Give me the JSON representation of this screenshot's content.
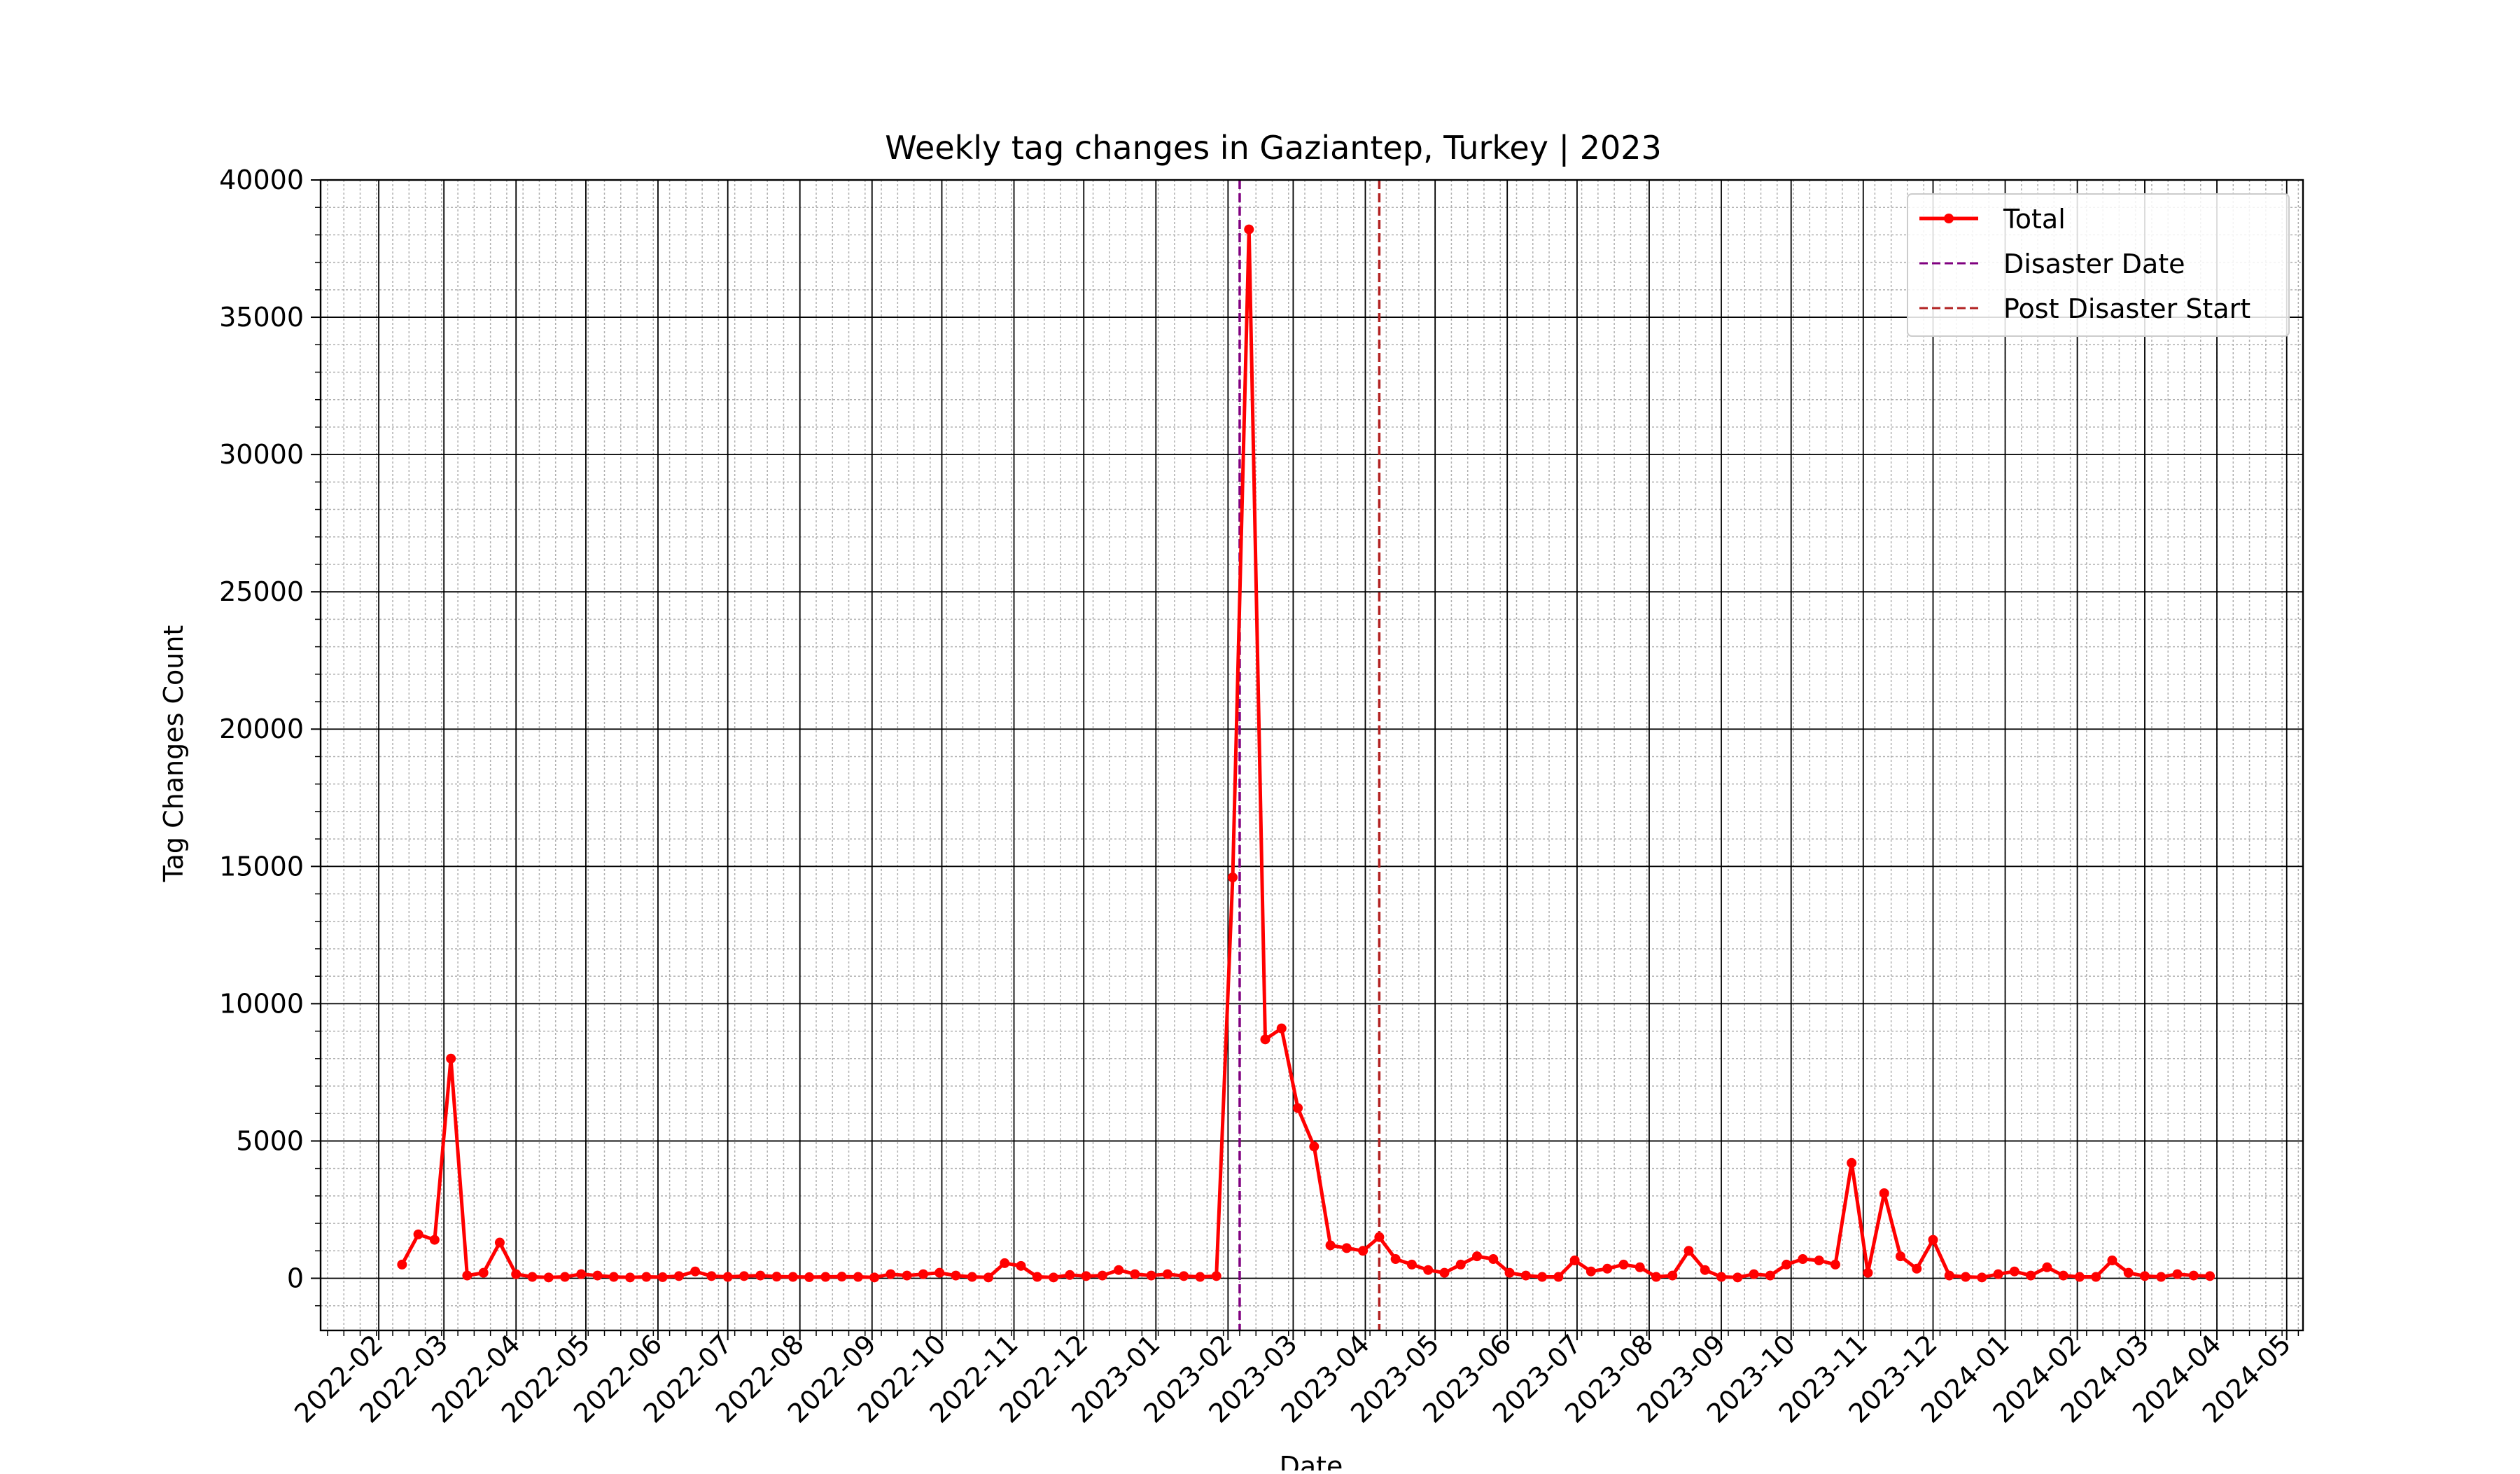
{
  "colors": {
    "total": "#ff0000",
    "disaster": "#800080",
    "post_disaster": "#b22222",
    "major_grid": "#000000",
    "minor_grid": "#b0b0b0"
  },
  "chart_data": {
    "type": "line",
    "title": "Weekly tag changes in Gaziantep, Turkey | 2023",
    "xlabel": "Date",
    "ylabel": "Tag Changes Count",
    "xlim": [
      "2022-01-07",
      "2024-05-08"
    ],
    "ylim": [
      -1900,
      40000
    ],
    "yticks": [
      0,
      5000,
      10000,
      15000,
      20000,
      25000,
      30000,
      35000,
      40000
    ],
    "xticks": [
      "2022-02",
      "2022-03",
      "2022-04",
      "2022-05",
      "2022-06",
      "2022-07",
      "2022-08",
      "2022-09",
      "2022-10",
      "2022-11",
      "2022-12",
      "2023-01",
      "2023-02",
      "2023-03",
      "2023-04",
      "2023-05",
      "2023-06",
      "2023-07",
      "2023-08",
      "2023-09",
      "2023-10",
      "2023-11",
      "2023-12",
      "2024-01",
      "2024-02",
      "2024-03",
      "2024-04",
      "2024-05"
    ],
    "grid": true,
    "legend": "top-right",
    "vlines": [
      {
        "name": "Disaster Date",
        "x": "2023-02-06",
        "color": "#800080"
      },
      {
        "name": "Post Disaster Start",
        "x": "2023-04-07",
        "color": "#b22222"
      }
    ],
    "series": [
      {
        "name": "Total",
        "color": "#ff0000",
        "x": [
          "2022-02-11",
          "2022-02-18",
          "2022-02-25",
          "2022-03-04",
          "2022-03-11",
          "2022-03-18",
          "2022-03-25",
          "2022-04-01",
          "2022-04-08",
          "2022-04-15",
          "2022-04-22",
          "2022-04-29",
          "2022-05-06",
          "2022-05-13",
          "2022-05-20",
          "2022-05-27",
          "2022-06-03",
          "2022-06-10",
          "2022-06-17",
          "2022-06-24",
          "2022-07-01",
          "2022-07-08",
          "2022-07-15",
          "2022-07-22",
          "2022-07-29",
          "2022-08-05",
          "2022-08-12",
          "2022-08-19",
          "2022-08-26",
          "2022-09-02",
          "2022-09-09",
          "2022-09-16",
          "2022-09-23",
          "2022-09-30",
          "2022-10-07",
          "2022-10-14",
          "2022-10-21",
          "2022-10-28",
          "2022-11-04",
          "2022-11-11",
          "2022-11-18",
          "2022-11-25",
          "2022-12-02",
          "2022-12-09",
          "2022-12-16",
          "2022-12-23",
          "2022-12-30",
          "2023-01-06",
          "2023-01-13",
          "2023-01-20",
          "2023-01-27",
          "2023-02-03",
          "2023-02-10",
          "2023-02-17",
          "2023-02-24",
          "2023-03-03",
          "2023-03-10",
          "2023-03-17",
          "2023-03-24",
          "2023-03-31",
          "2023-04-07",
          "2023-04-14",
          "2023-04-21",
          "2023-04-28",
          "2023-05-05",
          "2023-05-12",
          "2023-05-19",
          "2023-05-26",
          "2023-06-02",
          "2023-06-09",
          "2023-06-16",
          "2023-06-23",
          "2023-06-30",
          "2023-07-07",
          "2023-07-14",
          "2023-07-21",
          "2023-07-28",
          "2023-08-04",
          "2023-08-11",
          "2023-08-18",
          "2023-08-25",
          "2023-09-01",
          "2023-09-08",
          "2023-09-15",
          "2023-09-22",
          "2023-09-29",
          "2023-10-06",
          "2023-10-13",
          "2023-10-20",
          "2023-10-27",
          "2023-11-03",
          "2023-11-10",
          "2023-11-17",
          "2023-11-24",
          "2023-12-01",
          "2023-12-08",
          "2023-12-15",
          "2023-12-22",
          "2023-12-29",
          "2024-01-05",
          "2024-01-12",
          "2024-01-19",
          "2024-01-26",
          "2024-02-02",
          "2024-02-09",
          "2024-02-16",
          "2024-02-23",
          "2024-03-01",
          "2024-03-08",
          "2024-03-15",
          "2024-03-22",
          "2024-03-29"
        ],
        "y": [
          500,
          1600,
          1400,
          8000,
          100,
          200,
          1300,
          150,
          50,
          30,
          50,
          150,
          100,
          50,
          30,
          50,
          40,
          80,
          250,
          80,
          50,
          80,
          100,
          60,
          50,
          40,
          50,
          60,
          50,
          30,
          150,
          100,
          150,
          200,
          100,
          50,
          30,
          550,
          450,
          50,
          30,
          120,
          80,
          100,
          300,
          150,
          100,
          150,
          80,
          50,
          80,
          14600,
          38200,
          8700,
          9100,
          6200,
          4800,
          1200,
          1100,
          1000,
          1500,
          700,
          500,
          300,
          200,
          500,
          800,
          700,
          200,
          100,
          50,
          50,
          650,
          250,
          350,
          500,
          400,
          50,
          100,
          1000,
          300,
          50,
          30,
          150,
          100,
          500,
          700,
          650,
          500,
          4200,
          200,
          3100,
          800,
          350,
          1400,
          100,
          50,
          30,
          150,
          250,
          100,
          400,
          100,
          50,
          50,
          650,
          200,
          80,
          50,
          150,
          100,
          80
        ]
      }
    ]
  }
}
